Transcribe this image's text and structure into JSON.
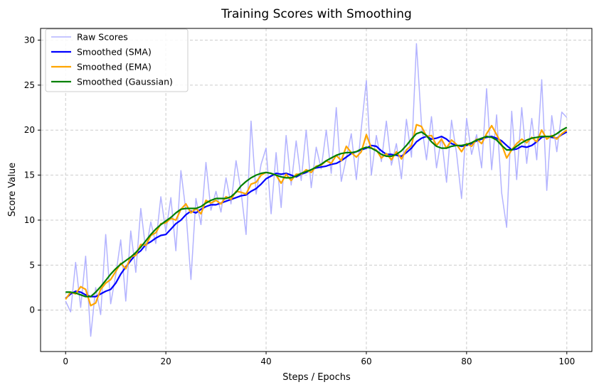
{
  "chart_data": {
    "type": "line",
    "title": "Training Scores with Smoothing",
    "xlabel": "Steps / Epochs",
    "ylabel": "Score Value",
    "xlim": [
      -5,
      105
    ],
    "ylim": [
      -4.6,
      31.3
    ],
    "x_start": 0,
    "x_step": 1,
    "xticks": [
      0,
      20,
      40,
      60,
      80,
      100
    ],
    "yticks": [
      0,
      5,
      10,
      15,
      20,
      25,
      30
    ],
    "grid": true,
    "legend_position": "top-left",
    "series": [
      {
        "name": "Raw Scores",
        "color": "#b3b3ff",
        "values": [
          1.0,
          -0.2,
          5.3,
          0.3,
          6.0,
          -2.9,
          2.5,
          -0.5,
          8.4,
          0.7,
          3.9,
          7.8,
          1.0,
          8.8,
          4.2,
          11.3,
          6.6,
          9.8,
          7.4,
          12.6,
          8.7,
          12.5,
          6.6,
          15.5,
          11.0,
          3.4,
          12.4,
          9.5,
          16.4,
          11.1,
          13.2,
          10.9,
          14.7,
          11.8,
          16.6,
          13.2,
          8.4,
          21.0,
          12.9,
          16.2,
          18.0,
          10.7,
          17.5,
          11.4,
          19.4,
          13.9,
          18.8,
          14.4,
          20.0,
          13.6,
          18.1,
          15.7,
          20.0,
          15.2,
          22.5,
          14.3,
          16.9,
          19.6,
          14.5,
          20.2,
          25.5,
          15.0,
          19.4,
          16.5,
          21.0,
          16.1,
          18.5,
          14.6,
          21.2,
          17.0,
          29.6,
          20.6,
          16.7,
          21.5,
          15.8,
          19.2,
          14.2,
          21.1,
          17.4,
          12.4,
          21.3,
          17.3,
          19.5,
          15.8,
          24.6,
          15.6,
          21.7,
          13.0,
          9.2,
          22.1,
          14.5,
          22.5,
          16.3,
          21.3,
          16.7,
          25.6,
          13.3,
          21.6,
          17.6,
          22.0,
          21.4
        ]
      },
      {
        "name": "Smoothed (SMA)",
        "color": "#0000ff",
        "values": [
          1.3,
          1.8,
          2.1,
          2.0,
          1.7,
          1.5,
          1.5,
          1.8,
          2.1,
          2.3,
          3.0,
          4.0,
          4.8,
          5.5,
          6.2,
          6.6,
          7.3,
          7.6,
          8.0,
          8.3,
          8.4,
          9.0,
          9.6,
          10.0,
          10.6,
          11.0,
          10.8,
          11.2,
          11.5,
          11.7,
          11.7,
          11.9,
          12.1,
          12.3,
          12.5,
          12.7,
          12.8,
          13.2,
          13.5,
          14.0,
          14.6,
          14.9,
          15.2,
          15.1,
          15.2,
          15.0,
          14.8,
          15.1,
          15.3,
          15.6,
          15.8,
          15.9,
          16.0,
          16.2,
          16.3,
          16.6,
          17.0,
          17.4,
          17.6,
          17.8,
          18.0,
          18.3,
          18.2,
          17.7,
          17.3,
          17.3,
          17.2,
          17.1,
          17.5,
          18.0,
          18.7,
          19.1,
          19.3,
          19.0,
          19.1,
          19.3,
          19.0,
          18.5,
          18.3,
          18.2,
          18.3,
          18.5,
          18.8,
          19.0,
          19.2,
          19.3,
          19.1,
          18.8,
          18.3,
          17.8,
          17.9,
          18.2,
          18.1,
          18.3,
          18.7,
          19.2,
          19.3,
          19.2,
          19.1,
          19.5,
          19.8
        ]
      },
      {
        "name": "Smoothed (EMA)",
        "color": "#ffa500",
        "values": [
          1.2,
          2.0,
          1.8,
          2.6,
          2.3,
          0.5,
          0.8,
          2.3,
          3.0,
          3.4,
          4.3,
          5.2,
          4.6,
          5.9,
          6.1,
          7.3,
          7.2,
          8.3,
          8.6,
          9.6,
          9.7,
          10.2,
          10.0,
          11.2,
          11.8,
          10.8,
          11.3,
          10.7,
          12.2,
          11.9,
          12.2,
          11.8,
          12.6,
          12.3,
          13.2,
          13.1,
          12.9,
          14.0,
          14.2,
          15.0,
          15.3,
          15.2,
          15.0,
          14.1,
          15.1,
          14.4,
          15.1,
          15.1,
          15.6,
          15.3,
          16.0,
          16.1,
          16.6,
          16.3,
          17.2,
          16.6,
          18.2,
          17.5,
          17.0,
          17.6,
          19.5,
          18.0,
          17.8,
          16.9,
          17.4,
          16.7,
          17.6,
          16.8,
          17.8,
          18.3,
          20.6,
          20.4,
          19.3,
          19.4,
          18.3,
          19.0,
          18.0,
          18.9,
          18.4,
          17.6,
          18.5,
          18.2,
          19.0,
          18.5,
          19.6,
          20.5,
          19.5,
          18.4,
          16.9,
          17.8,
          18.5,
          19.0,
          18.6,
          19.2,
          18.7,
          20.0,
          19.0,
          19.4,
          19.0,
          19.6,
          20.0
        ]
      },
      {
        "name": "Smoothed (Gaussian)",
        "color": "#008000",
        "values": [
          2.0,
          2.0,
          1.9,
          1.7,
          1.5,
          1.5,
          2.0,
          2.6,
          3.3,
          4.0,
          4.6,
          5.1,
          5.5,
          5.9,
          6.4,
          7.0,
          7.7,
          8.4,
          9.0,
          9.5,
          9.9,
          10.3,
          10.8,
          11.2,
          11.3,
          11.3,
          11.3,
          11.5,
          11.9,
          12.2,
          12.4,
          12.4,
          12.4,
          12.6,
          13.1,
          13.8,
          14.3,
          14.7,
          15.0,
          15.2,
          15.3,
          15.2,
          15.0,
          14.8,
          14.7,
          14.7,
          14.9,
          15.2,
          15.4,
          15.6,
          15.9,
          16.2,
          16.6,
          16.9,
          17.2,
          17.4,
          17.5,
          17.5,
          17.6,
          17.9,
          18.1,
          18.0,
          17.7,
          17.3,
          17.1,
          17.1,
          17.3,
          17.7,
          18.3,
          19.0,
          19.6,
          19.8,
          19.4,
          18.7,
          18.2,
          18.0,
          18.0,
          18.2,
          18.3,
          18.3,
          18.4,
          18.6,
          18.9,
          19.1,
          19.3,
          19.2,
          18.9,
          18.3,
          17.8,
          17.8,
          18.2,
          18.6,
          18.9,
          19.1,
          19.2,
          19.3,
          19.3,
          19.3,
          19.6,
          20.0,
          20.3
        ]
      }
    ]
  }
}
